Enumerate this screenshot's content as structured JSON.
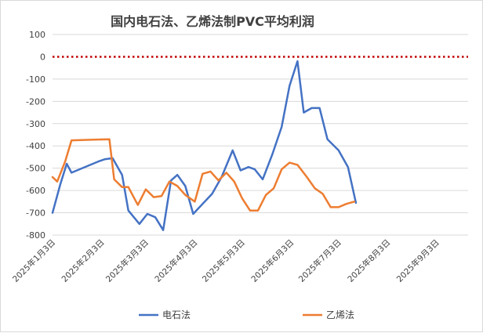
{
  "chart_data": {
    "type": "line",
    "title": "国内电石法、乙烯法制PVC平均利润",
    "xlabel": "",
    "ylabel": "",
    "ylim": [
      -800,
      100
    ],
    "yticks": [
      "100",
      "0",
      "-100",
      "-200",
      "-300",
      "-400",
      "-500",
      "-600",
      "-700",
      "-800"
    ],
    "grid": true,
    "legend_position": "bottom",
    "x_range": [
      "2025-01-01",
      "2025-09-21"
    ],
    "x_tick_labels": [
      {
        "label": "2025年1月3日",
        "date": "2025-01-03"
      },
      {
        "label": "2025年2月3日",
        "date": "2025-02-03"
      },
      {
        "label": "2025年3月3日",
        "date": "2025-03-03"
      },
      {
        "label": "2025年4月3日",
        "date": "2025-04-03"
      },
      {
        "label": "2025年5月3日",
        "date": "2025-05-03"
      },
      {
        "label": "2025年6月3日",
        "date": "2025-06-03"
      },
      {
        "label": "2025年7月3日",
        "date": "2025-07-03"
      },
      {
        "label": "2025年8月3日",
        "date": "2025-08-03"
      },
      {
        "label": "2025年9月3日",
        "date": "2025-09-03"
      }
    ],
    "reference_line": {
      "y": 0,
      "color": "#c00000"
    },
    "series": [
      {
        "name": "电石法",
        "color": "#4472c4",
        "points": [
          [
            "2025-01-01",
            -700
          ],
          [
            "2025-01-06",
            -570
          ],
          [
            "2025-01-10",
            -480
          ],
          [
            "2025-01-13",
            -520
          ],
          [
            "2025-01-30",
            -470
          ],
          [
            "2025-02-03",
            -460
          ],
          [
            "2025-02-08",
            -455
          ],
          [
            "2025-02-14",
            -530
          ],
          [
            "2025-02-18",
            -690
          ],
          [
            "2025-02-25",
            -750
          ],
          [
            "2025-03-02",
            -705
          ],
          [
            "2025-03-07",
            -720
          ],
          [
            "2025-03-12",
            -778
          ],
          [
            "2025-03-17",
            -555
          ],
          [
            "2025-03-21",
            -530
          ],
          [
            "2025-03-26",
            -580
          ],
          [
            "2025-03-31",
            -705
          ],
          [
            "2025-04-06",
            -660
          ],
          [
            "2025-04-12",
            -615
          ],
          [
            "2025-04-18",
            -540
          ],
          [
            "2025-04-25",
            -420
          ],
          [
            "2025-04-30",
            -510
          ],
          [
            "2025-05-05",
            -495
          ],
          [
            "2025-05-09",
            -505
          ],
          [
            "2025-05-14",
            -550
          ],
          [
            "2025-05-20",
            -440
          ],
          [
            "2025-05-26",
            -315
          ],
          [
            "2025-05-31",
            -130
          ],
          [
            "2025-06-05",
            -20
          ],
          [
            "2025-06-09",
            -250
          ],
          [
            "2025-06-14",
            -230
          ],
          [
            "2025-06-19",
            -230
          ],
          [
            "2025-06-24",
            -370
          ],
          [
            "2025-07-01",
            -420
          ],
          [
            "2025-07-07",
            -495
          ],
          [
            "2025-07-12",
            -655
          ]
        ]
      },
      {
        "name": "乙烯法",
        "color": "#ed7d31",
        "points": [
          [
            "2025-01-01",
            -540
          ],
          [
            "2025-01-04",
            -560
          ],
          [
            "2025-01-09",
            -470
          ],
          [
            "2025-01-13",
            -375
          ],
          [
            "2025-02-06",
            -370
          ],
          [
            "2025-02-09",
            -550
          ],
          [
            "2025-02-14",
            -585
          ],
          [
            "2025-02-18",
            -585
          ],
          [
            "2025-02-24",
            -665
          ],
          [
            "2025-03-01",
            -595
          ],
          [
            "2025-03-06",
            -630
          ],
          [
            "2025-03-11",
            -625
          ],
          [
            "2025-03-16",
            -560
          ],
          [
            "2025-03-21",
            -580
          ],
          [
            "2025-03-26",
            -620
          ],
          [
            "2025-04-01",
            -650
          ],
          [
            "2025-04-06",
            -525
          ],
          [
            "2025-04-11",
            -515
          ],
          [
            "2025-04-16",
            -555
          ],
          [
            "2025-04-21",
            -520
          ],
          [
            "2025-04-26",
            -560
          ],
          [
            "2025-05-01",
            -635
          ],
          [
            "2025-05-06",
            -690
          ],
          [
            "2025-05-11",
            -690
          ],
          [
            "2025-05-16",
            -620
          ],
          [
            "2025-05-21",
            -590
          ],
          [
            "2025-05-26",
            -505
          ],
          [
            "2025-05-31",
            -475
          ],
          [
            "2025-06-05",
            -485
          ],
          [
            "2025-06-11",
            -540
          ],
          [
            "2025-06-16",
            -590
          ],
          [
            "2025-06-21",
            -615
          ],
          [
            "2025-06-26",
            -675
          ],
          [
            "2025-07-01",
            -675
          ],
          [
            "2025-07-06",
            -660
          ],
          [
            "2025-07-11",
            -650
          ]
        ]
      }
    ]
  }
}
